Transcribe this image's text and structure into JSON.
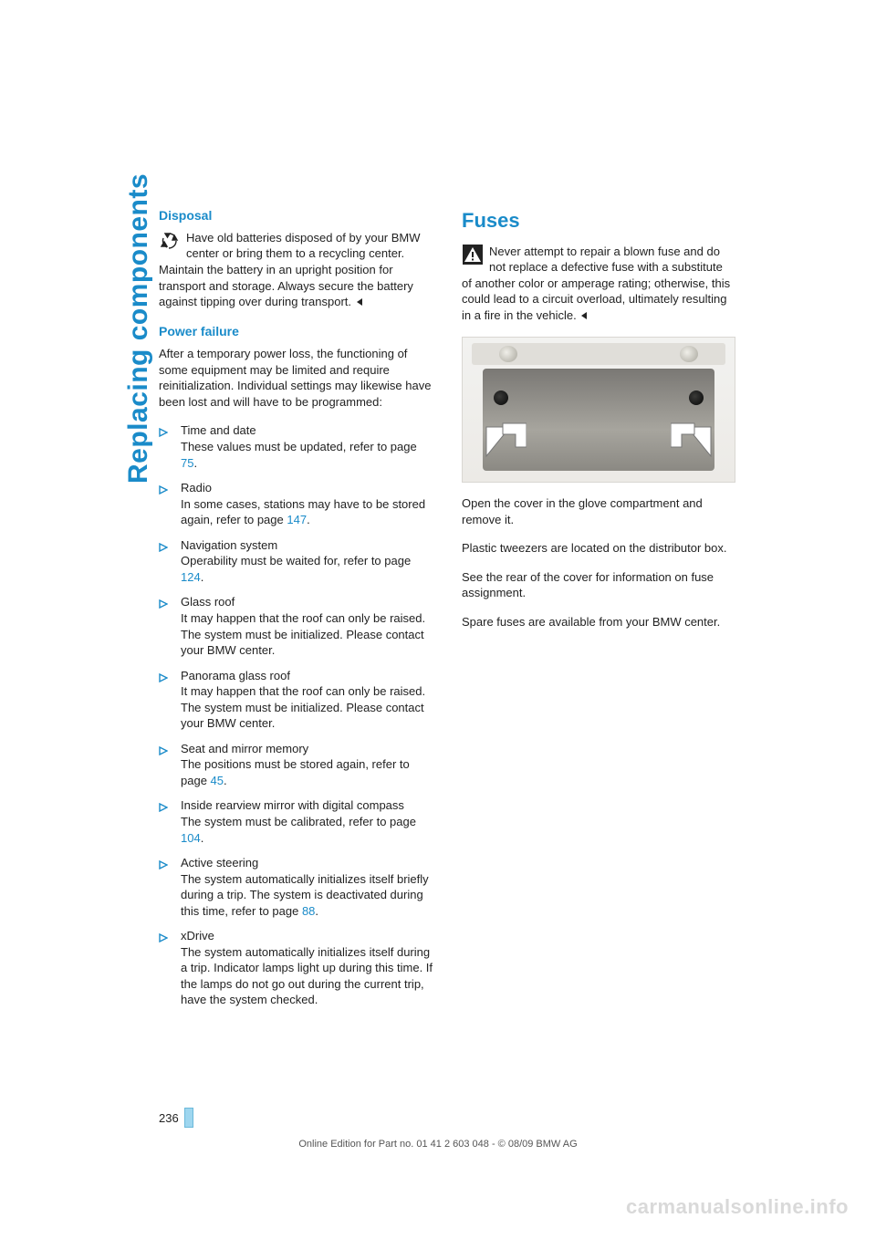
{
  "side_title": "Replacing components",
  "left": {
    "disposal": {
      "heading": "Disposal",
      "body": "Have old batteries disposed of by your BMW center or bring them to a recycling center. Maintain the battery in an upright position for transport and storage. Always secure the battery against tipping over during transport."
    },
    "power_failure": {
      "heading": "Power failure",
      "intro": "After a temporary power loss, the functioning of some equipment may be limited and require reinitialization. Individual settings may likewise have been lost and will have to be programmed:",
      "items": [
        {
          "title": "Time and date",
          "body_pre": "These values must be updated, refer to page ",
          "link": "75",
          "body_post": "."
        },
        {
          "title": "Radio",
          "body_pre": "In some cases, stations may have to be stored again, refer to page ",
          "link": "147",
          "body_post": "."
        },
        {
          "title": "Navigation system",
          "body_pre": "Operability must be waited for, refer to page ",
          "link": "124",
          "body_post": "."
        },
        {
          "title": "Glass roof",
          "body_pre": "It may happen that the roof can only be raised. The system must be initialized. Please contact your BMW center.",
          "link": "",
          "body_post": ""
        },
        {
          "title": "Panorama glass roof",
          "body_pre": "It may happen that the roof can only be raised. The system must be initialized. Please contact your BMW center.",
          "link": "",
          "body_post": ""
        },
        {
          "title": "Seat and mirror memory",
          "body_pre": "The positions must be stored again, refer to page ",
          "link": "45",
          "body_post": "."
        },
        {
          "title": "Inside rearview mirror with digital compass",
          "body_pre": "The system must be calibrated, refer to page ",
          "link": "104",
          "body_post": "."
        },
        {
          "title": "Active steering",
          "body_pre": "The system automatically initializes itself briefly during a trip. The system is deactivated during this time, refer to page ",
          "link": "88",
          "body_post": "."
        },
        {
          "title": "xDrive",
          "body_pre": "The system automatically initializes itself during a trip. Indicator lamps light up during this time. If the lamps do not go out during the current trip, have the system checked.",
          "link": "",
          "body_post": ""
        }
      ]
    }
  },
  "right": {
    "fuses": {
      "heading": "Fuses",
      "warning": "Never attempt to repair a blown fuse and do not replace a defective fuse with a substitute of another color or amperage rating; otherwise, this could lead to a circuit overload, ultimately resulting in a fire in the vehicle.",
      "p1": "Open the cover in the glove compartment and remove it.",
      "p2": "Plastic tweezers are located on the distributor box.",
      "p3": "See the rear of the cover for information on fuse assignment.",
      "p4": "Spare fuses are available from your BMW center."
    }
  },
  "page_number": "236",
  "footer": "Online Edition for Part no. 01 41 2 603 048 - © 08/09 BMW AG",
  "watermark": "carmanualsonline.info",
  "colors": {
    "accent": "#1a8bc9",
    "text": "#222222",
    "watermark": "#d9d9d9"
  }
}
